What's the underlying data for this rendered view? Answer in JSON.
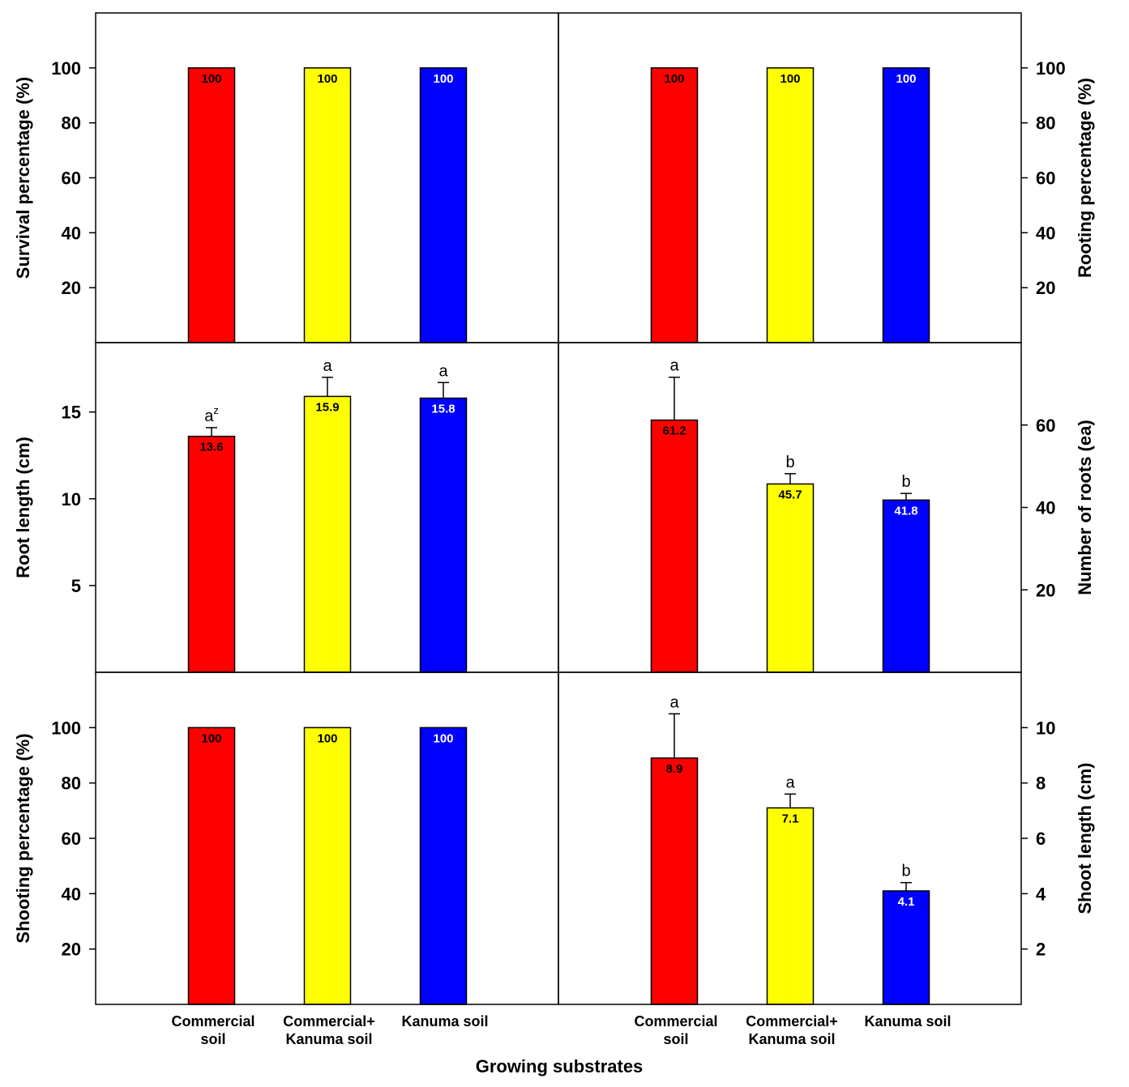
{
  "colors": {
    "bar_colors": [
      "#ff0000",
      "#ffff00",
      "#0000ff"
    ],
    "value_text_colors": [
      "#000000",
      "#000000",
      "#ffffff"
    ]
  },
  "xlabel": "Growing substrates",
  "category_labels": [
    [
      "Commercial",
      "soil"
    ],
    [
      "Commercial+",
      "Kanuma soil"
    ],
    [
      "Kanuma soil"
    ]
  ],
  "chart_data": [
    {
      "type": "bar",
      "ylabel": "Survival percentage (%)",
      "ylim": [
        0,
        120
      ],
      "yticks": [
        20,
        40,
        60,
        80,
        100
      ],
      "categories": [
        "Commercial soil",
        "Commercial+ Kanuma soil",
        "Kanuma soil"
      ],
      "values": [
        100,
        100,
        100
      ],
      "value_labels": [
        "100",
        "100",
        "100"
      ],
      "errors": [
        0,
        0,
        0
      ],
      "letters": [
        "",
        "",
        ""
      ]
    },
    {
      "type": "bar",
      "ylabel": "Rooting percentage (%)",
      "ylim": [
        0,
        120
      ],
      "yticks": [
        20,
        40,
        60,
        80,
        100
      ],
      "categories": [
        "Commercial soil",
        "Commercial+ Kanuma soil",
        "Kanuma soil"
      ],
      "values": [
        100,
        100,
        100
      ],
      "value_labels": [
        "100",
        "100",
        "100"
      ],
      "errors": [
        0,
        0,
        0
      ],
      "letters": [
        "",
        "",
        ""
      ]
    },
    {
      "type": "bar",
      "ylabel": "Root length (cm)",
      "ylim": [
        0,
        19
      ],
      "yticks": [
        5,
        10,
        15
      ],
      "categories": [
        "Commercial soil",
        "Commercial+ Kanuma soil",
        "Kanuma soil"
      ],
      "values": [
        13.6,
        15.9,
        15.8
      ],
      "value_labels": [
        "13.6",
        "15.9",
        "15.8"
      ],
      "errors": [
        0.5,
        1.1,
        0.9
      ],
      "letters": [
        "a",
        "a",
        "a"
      ],
      "letter_superscripts": [
        "z",
        "",
        ""
      ]
    },
    {
      "type": "bar",
      "ylabel": "Number of roots (ea)",
      "ylim": [
        0,
        80
      ],
      "yticks": [
        20,
        40,
        60
      ],
      "categories": [
        "Commercial soil",
        "Commercial+ Kanuma soil",
        "Kanuma soil"
      ],
      "values": [
        61.2,
        45.7,
        41.8
      ],
      "value_labels": [
        "61.2",
        "45.7",
        "41.8"
      ],
      "errors": [
        10.4,
        2.5,
        1.6
      ],
      "letters": [
        "a",
        "b",
        "b"
      ]
    },
    {
      "type": "bar",
      "ylabel": "Shooting percentage (%)",
      "ylim": [
        0,
        120
      ],
      "yticks": [
        20,
        40,
        60,
        80,
        100
      ],
      "categories": [
        "Commercial soil",
        "Commercial+ Kanuma soil",
        "Kanuma soil"
      ],
      "values": [
        100,
        100,
        100
      ],
      "value_labels": [
        "100",
        "100",
        "100"
      ],
      "errors": [
        0,
        0,
        0
      ],
      "letters": [
        "",
        "",
        ""
      ]
    },
    {
      "type": "bar",
      "ylabel": "Shoot length (cm)",
      "ylim": [
        0,
        12
      ],
      "yticks": [
        2,
        4,
        6,
        8,
        10
      ],
      "categories": [
        "Commercial soil",
        "Commercial+ Kanuma soil",
        "Kanuma soil"
      ],
      "values": [
        8.9,
        7.1,
        4.1
      ],
      "value_labels": [
        "8.9",
        "7.1",
        "4.1"
      ],
      "errors": [
        1.6,
        0.5,
        0.3
      ],
      "letters": [
        "a",
        "a",
        "b"
      ]
    }
  ]
}
